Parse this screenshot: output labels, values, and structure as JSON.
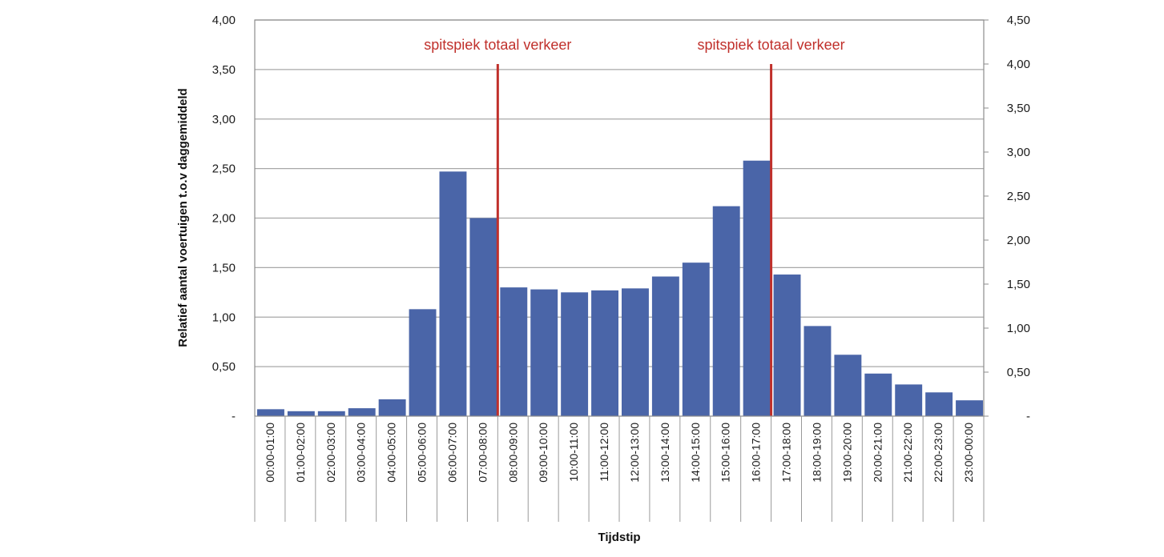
{
  "chart_data": {
    "type": "bar",
    "title": "",
    "xlabel": "Tijdstip",
    "ylabel": "Relatief aantal voertuigen t.o.v daggemiddeld",
    "categories": [
      "00:00-01:00",
      "01:00-02:00",
      "02:00-03:00",
      "03:00-04:00",
      "04:00-05:00",
      "05:00-06:00",
      "06:00-07:00",
      "07:00-08:00",
      "08:00-09:00",
      "09:00-10:00",
      "10:00-11:00",
      "11:00-12:00",
      "12:00-13:00",
      "13:00-14:00",
      "14:00-15:00",
      "15:00-16:00",
      "16:00-17:00",
      "17:00-18:00",
      "18:00-19:00",
      "19:00-20:00",
      "20:00-21:00",
      "21:00-22:00",
      "22:00-23:00",
      "23:00-00:00"
    ],
    "values": [
      0.07,
      0.05,
      0.05,
      0.08,
      0.17,
      1.08,
      2.47,
      2.0,
      1.3,
      1.28,
      1.25,
      1.27,
      1.29,
      1.41,
      1.55,
      2.12,
      2.58,
      1.43,
      0.91,
      0.62,
      0.43,
      0.32,
      0.24,
      0.16
    ],
    "ylim": [
      0,
      4.0
    ],
    "y_ticks": [
      "-",
      "0,50",
      "1,00",
      "1,50",
      "2,00",
      "2,50",
      "3,00",
      "3,50",
      "4,00"
    ],
    "y2lim": [
      0,
      4.5
    ],
    "y2_ticks": [
      "-",
      "0,50",
      "1,00",
      "1,50",
      "2,00",
      "2,50",
      "3,00",
      "3,50",
      "4,00",
      "4,50"
    ],
    "grid": true,
    "legend": "none",
    "bar_color": "#4a65a8",
    "annotations": [
      {
        "label": "spitspiek totaal verkeer",
        "after_category": "07:00-08:00",
        "color": "#c0302b"
      },
      {
        "label": "spitspiek totaal verkeer",
        "after_category": "16:00-17:00",
        "color": "#c0302b"
      }
    ]
  }
}
